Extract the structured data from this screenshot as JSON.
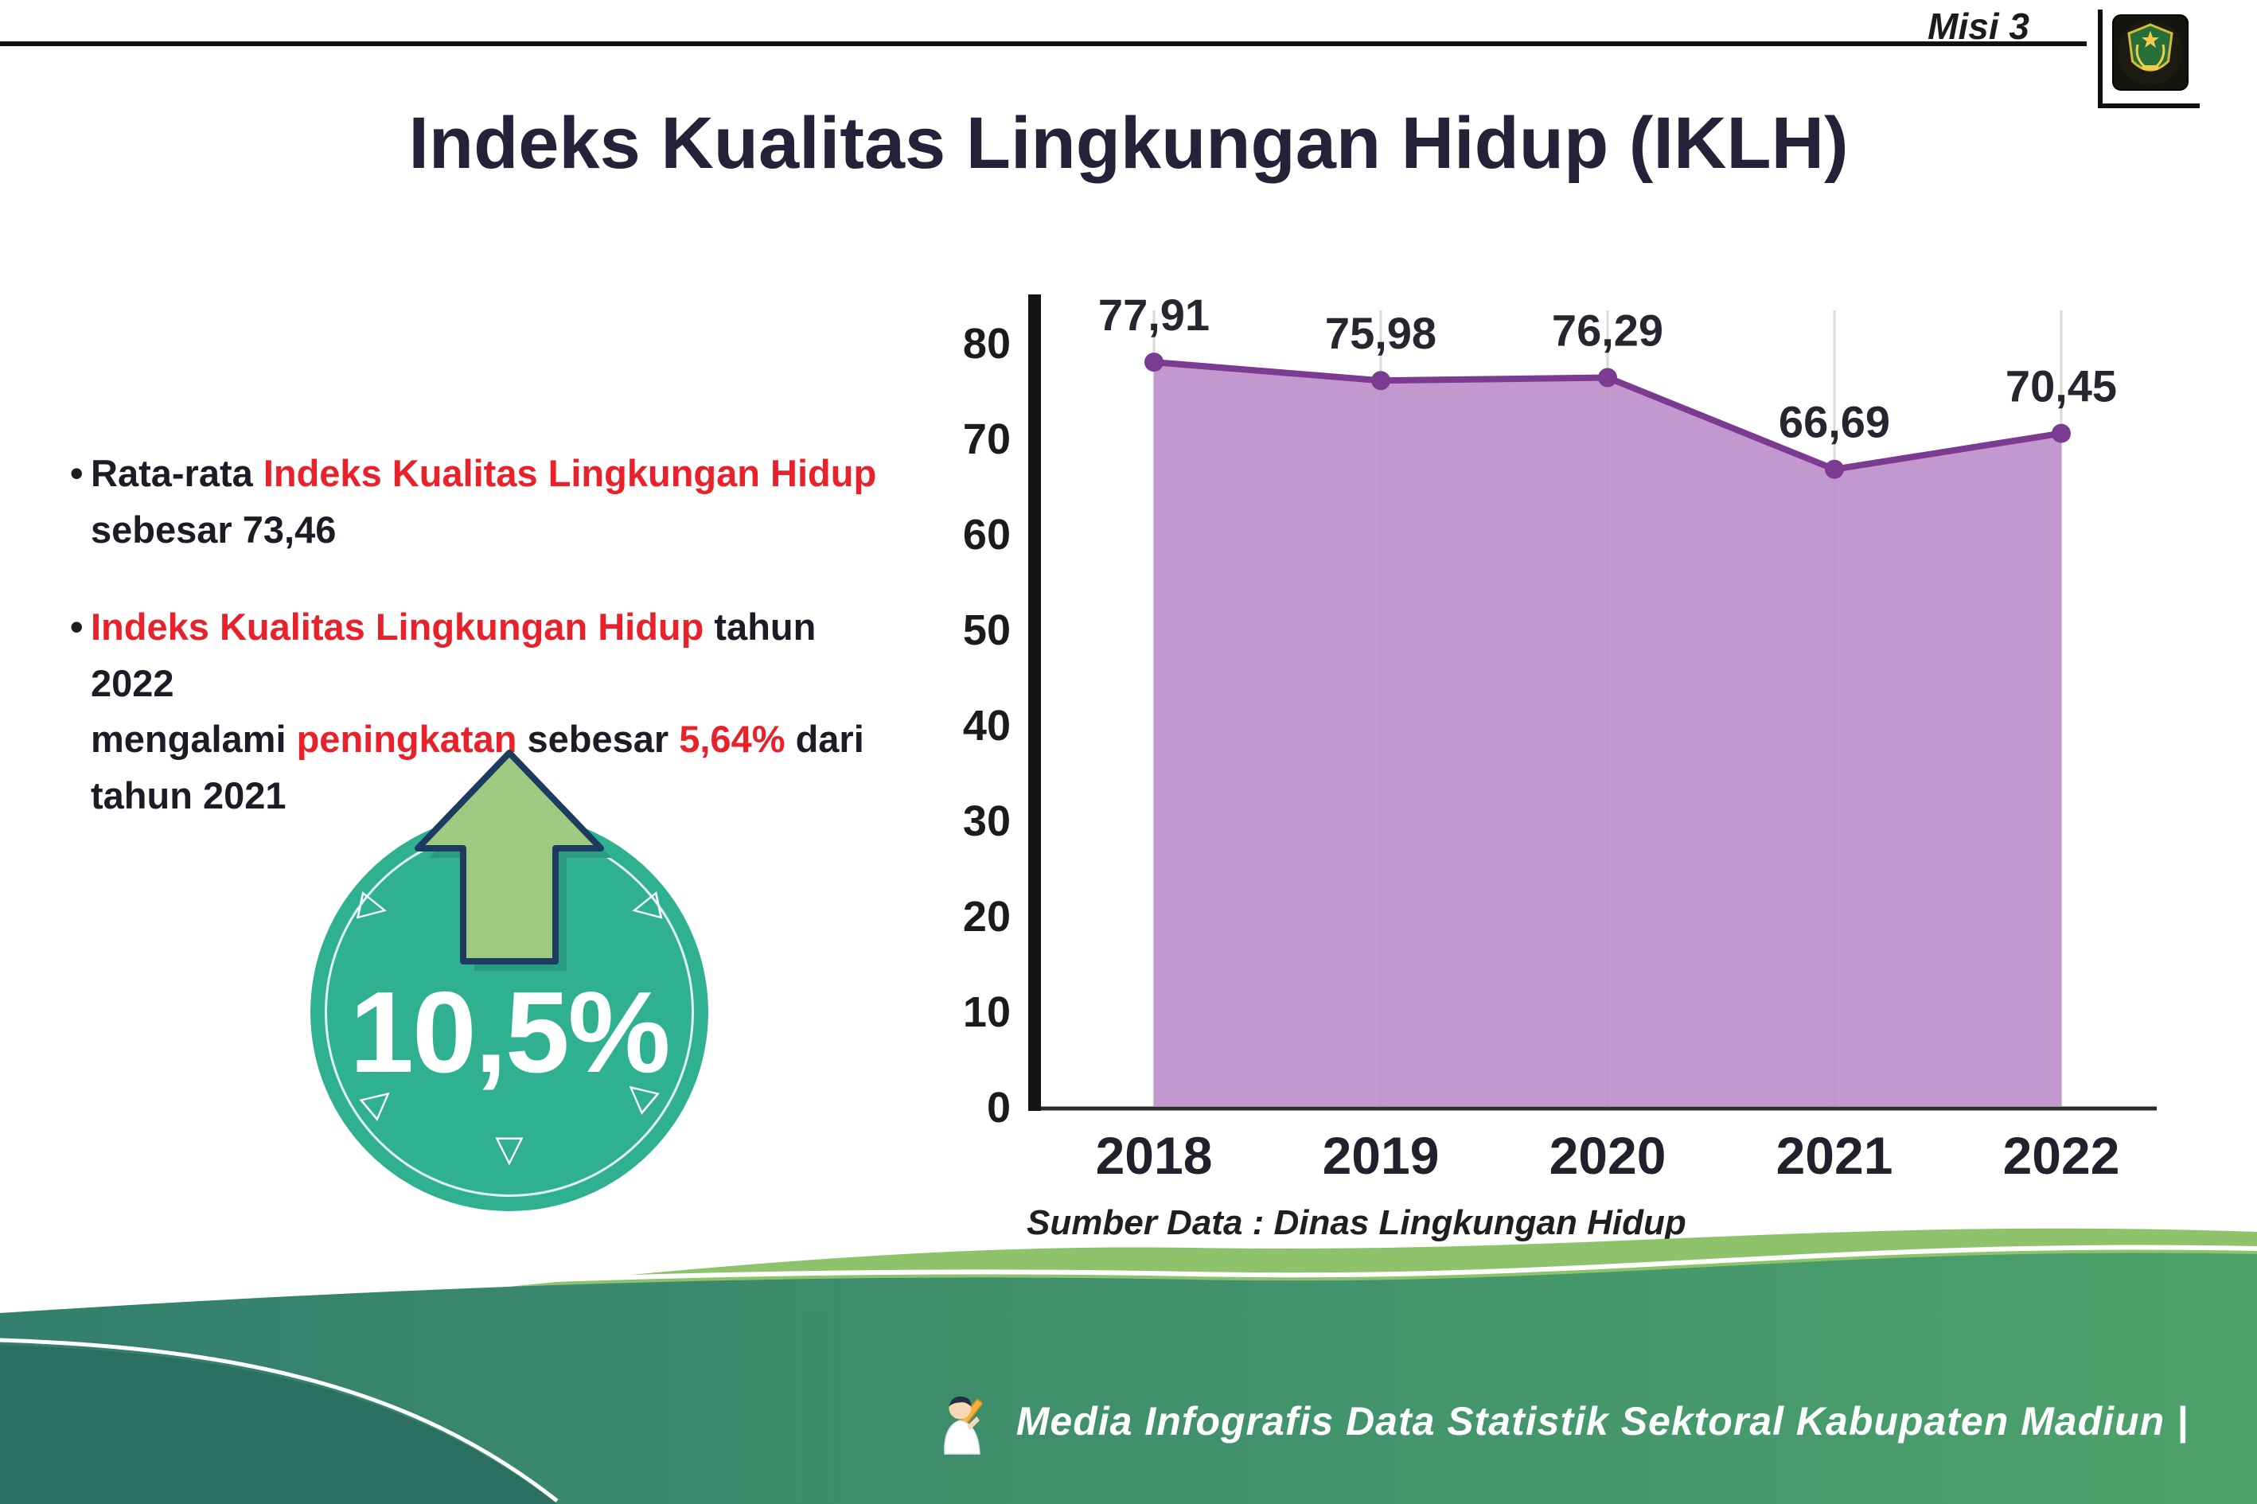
{
  "header": {
    "misi_label": "Misi 3",
    "title": "Indeks Kualitas Lingkungan Hidup (IKLH)",
    "logo_name": "kabupaten-madiun-seal"
  },
  "bullets": {
    "bullet_char": "•",
    "bullet1": {
      "segments": [
        {
          "text": "Rata-rata ",
          "color": "dark"
        },
        {
          "text": "Indeks Kualitas Lingkungan Hidup",
          "color": "red"
        },
        {
          "br": true
        },
        {
          "text": "sebesar 73,46",
          "color": "dark"
        }
      ]
    },
    "bullet2": {
      "segments": [
        {
          "text": "Indeks Kualitas Lingkungan Hidup",
          "color": "red"
        },
        {
          "text": " tahun 2022",
          "color": "dark"
        },
        {
          "br": true
        },
        {
          "text": "mengalami ",
          "color": "dark"
        },
        {
          "text": "peningkatan",
          "color": "red"
        },
        {
          "text": " sebesar ",
          "color": "dark"
        },
        {
          "text": "5,64%",
          "color": "red"
        },
        {
          "text": " dari",
          "color": "dark"
        },
        {
          "br": true
        },
        {
          "text": "tahun 2021",
          "color": "dark"
        }
      ]
    }
  },
  "badge": {
    "value": "10,5%",
    "arrow_icon": "up-arrow-icon"
  },
  "chart_data": {
    "type": "area",
    "title": "Indeks Kualitas Lingkungan Hidup (IKLH)",
    "categories": [
      "2018",
      "2019",
      "2020",
      "2021",
      "2022"
    ],
    "values": [
      77.91,
      75.98,
      76.29,
      66.69,
      70.45
    ],
    "point_labels": [
      "77,91",
      "75,98",
      "76,29",
      "66,69",
      "70,45"
    ],
    "xlabel": "",
    "ylabel": "",
    "ylim": [
      0,
      80
    ],
    "yticks": [
      0,
      10,
      20,
      30,
      40,
      50,
      60,
      70,
      80
    ],
    "grid": "vertical-light",
    "legend": "none",
    "fill_color": "#bd8fca",
    "line_color": "#7a3b90"
  },
  "source": "Sumber Data : Dinas Lingkungan Hidup",
  "footer": {
    "caption": "Media Infografis Data Statistik Sektoral Kabupaten Madiun |",
    "mascot_icon": "writer-mascot-icon"
  },
  "icons": {
    "triangle_right": "▷",
    "triangle_left": "◁",
    "triangle_down": "▽"
  },
  "colors": {
    "accent_red": "#e8212b",
    "text_dark": "#1c1c26",
    "title_dark": "#262138",
    "teal_badge": "#2fb191",
    "arrow_green": "#9dca80",
    "arrow_outline": "#1d3a5f",
    "chart_fill": "#bd8fca",
    "chart_line": "#7a3b90",
    "footer_crest": "#8ec36b",
    "footer_main": "#3c8f75",
    "footer_dark": "#2a6f60"
  }
}
